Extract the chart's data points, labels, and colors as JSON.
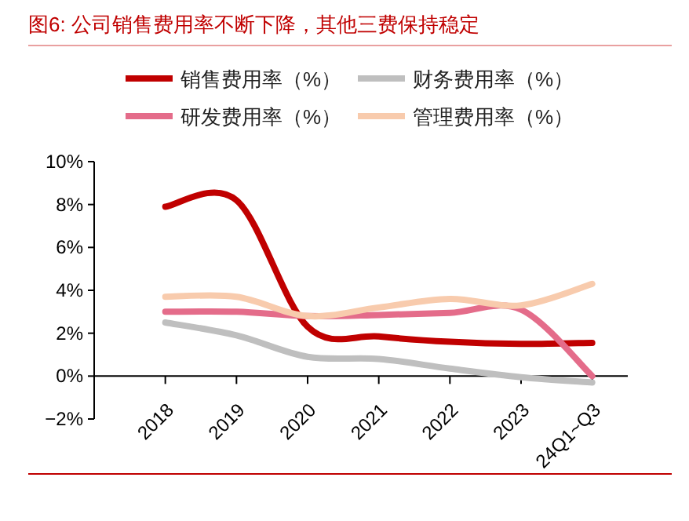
{
  "chart_data": {
    "type": "line",
    "title": "图6:  公司销售费用率不断下降，其他三费保持稳定",
    "categories": [
      "2018",
      "2019",
      "2020",
      "2021",
      "2022",
      "2023",
      "24Q1~Q3"
    ],
    "series": [
      {
        "name": "销售费用率（%）",
        "color": "#c00000",
        "values": [
          7.9,
          8.2,
          2.3,
          1.85,
          1.6,
          1.5,
          1.55
        ]
      },
      {
        "name": "财务费用率（%）",
        "color": "#bfbfbf",
        "values": [
          2.5,
          1.9,
          0.9,
          0.8,
          0.35,
          -0.05,
          -0.3
        ]
      },
      {
        "name": "研发费用率（%）",
        "color": "#e46c8a",
        "values": [
          3.0,
          3.0,
          2.8,
          2.85,
          2.95,
          3.1,
          0.0
        ]
      },
      {
        "name": "管理费用率（%）",
        "color": "#f8cbad",
        "values": [
          3.7,
          3.7,
          2.8,
          3.2,
          3.6,
          3.3,
          4.3
        ]
      }
    ],
    "ylim": [
      -2,
      10
    ],
    "yticks": [
      {
        "value": -2,
        "label": "−2%"
      },
      {
        "value": 0,
        "label": "0%"
      },
      {
        "value": 2,
        "label": "2%"
      },
      {
        "value": 4,
        "label": "4%"
      },
      {
        "value": 6,
        "label": "6%"
      },
      {
        "value": 8,
        "label": "8%"
      },
      {
        "value": 10,
        "label": "10%"
      }
    ],
    "grid": false,
    "legend": "top",
    "marker": "none",
    "line_style": "solid"
  }
}
